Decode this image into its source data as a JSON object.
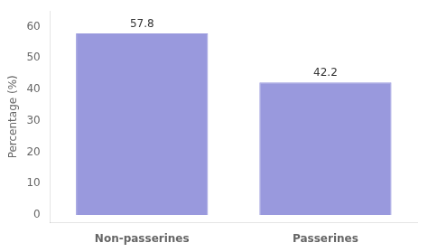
{
  "chart_data": {
    "type": "bar",
    "categories": [
      "Non-passerines",
      "Passerines"
    ],
    "values": [
      57.8,
      42.2
    ],
    "color": "#9999dd",
    "ylabel": "Percentage (%)",
    "ylim": [
      -2.5,
      65
    ],
    "yticks": [
      0,
      10,
      20,
      30,
      40,
      50,
      60
    ],
    "grid": false,
    "data_labels": true
  }
}
